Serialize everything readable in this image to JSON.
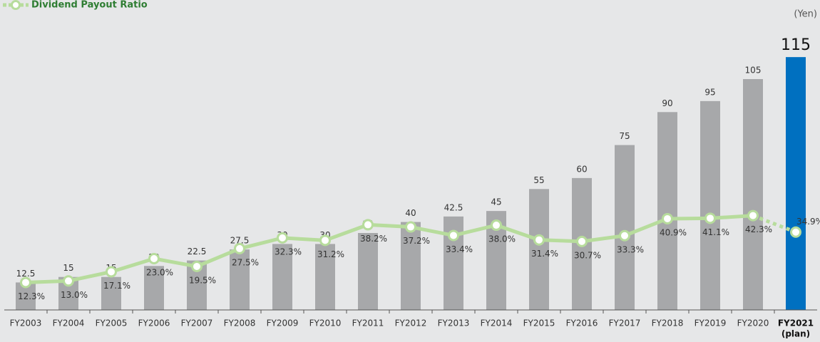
{
  "chart_data": {
    "type": "bar",
    "legend": "Dividend Payout Ratio",
    "unit": "(Yen)",
    "categories": [
      "FY2003",
      "FY2004",
      "FY2005",
      "FY2006",
      "FY2007",
      "FY2008",
      "FY2009",
      "FY2010",
      "FY2011",
      "FY2012",
      "FY2013",
      "FY2014",
      "FY2015",
      "FY2016",
      "FY2017",
      "FY2018",
      "FY2019",
      "FY2020",
      "FY2021"
    ],
    "category_note": "(plan)",
    "ylim": [
      0,
      140
    ],
    "y2lim": [
      0,
      138
    ],
    "series": [
      {
        "name": "Dividend",
        "type": "bar",
        "color": "#a7a8aa",
        "highlight_color": "#0070c0",
        "values": [
          12.5,
          15,
          15,
          20,
          22.5,
          27.5,
          30,
          30,
          35,
          40,
          42.5,
          45,
          55,
          60,
          75,
          90,
          95,
          105,
          115
        ]
      },
      {
        "name": "Dividend Payout Ratio",
        "type": "line",
        "axis": "y2",
        "color": "#b7dc9c",
        "values": [
          12.3,
          13.0,
          17.1,
          23.0,
          19.5,
          27.5,
          32.3,
          31.2,
          38.2,
          37.2,
          33.4,
          38.0,
          31.4,
          30.7,
          33.3,
          40.9,
          41.1,
          42.3,
          34.9
        ],
        "value_labels": [
          "12.3%",
          "13.0%",
          "17.1%",
          "23.0%",
          "19.5%",
          "27.5%",
          "32.3%",
          "31.2%",
          "38.2%",
          "37.2%",
          "33.4%",
          "38.0%",
          "31.4%",
          "30.7%",
          "33.3%",
          "40.9%",
          "41.1%",
          "42.3%",
          "34.9%"
        ]
      }
    ]
  }
}
